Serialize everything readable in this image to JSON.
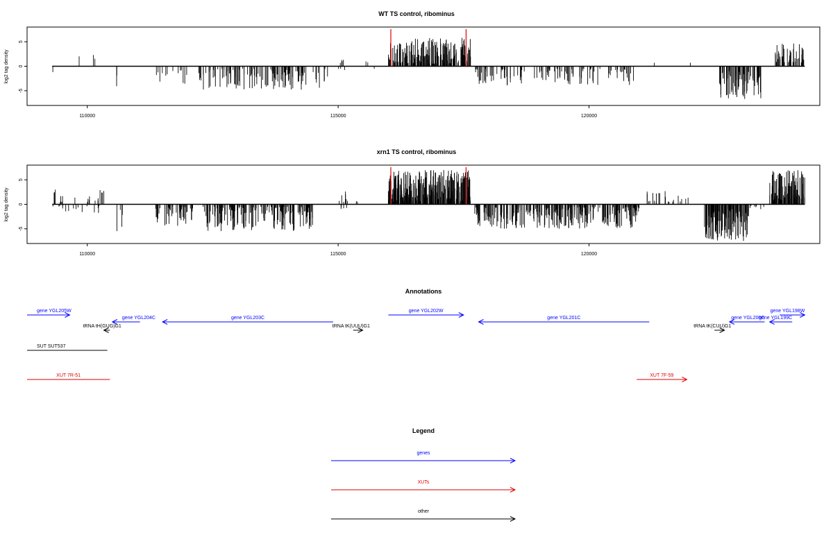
{
  "chart_data": [
    {
      "type": "bar",
      "title": "WT TS control, ribominus",
      "ylabel": "log2 tag density",
      "xlim": [
        108800,
        124600
      ],
      "ylim": [
        -8,
        8
      ],
      "x_ticks": [
        110000,
        115000,
        120000
      ],
      "x_tick_labels": [
        "110000",
        "115000",
        "120000"
      ],
      "y_ticks": [
        -5,
        0,
        5
      ],
      "y_tick_labels": [
        "-5",
        "0",
        "5"
      ],
      "highlight_lines": [
        116050,
        117550
      ],
      "highlight_color": "#dd0000",
      "regions": [
        {
          "start": 109300,
          "end": 109320,
          "sign": -1,
          "min": 1.0,
          "max": 2.0,
          "density": 1
        },
        {
          "start": 109730,
          "end": 110350,
          "sign": 1,
          "min": 0.5,
          "max": 2.3,
          "density": 0.06
        },
        {
          "start": 110500,
          "end": 110620,
          "sign": -1,
          "min": 1.0,
          "max": 5.0,
          "density": 0.25
        },
        {
          "start": 111300,
          "end": 112000,
          "sign": -1,
          "min": 0.5,
          "max": 4.2,
          "density": 0.25
        },
        {
          "start": 112200,
          "end": 114800,
          "sign": -1,
          "min": 0.5,
          "max": 4.8,
          "density": 0.7
        },
        {
          "start": 115000,
          "end": 115150,
          "sign": 1,
          "min": 0.5,
          "max": 1.8,
          "density": 0.4
        },
        {
          "start": 115000,
          "end": 115150,
          "sign": -1,
          "min": 0.5,
          "max": 1.2,
          "density": 0.3
        },
        {
          "start": 115550,
          "end": 115600,
          "sign": 1,
          "min": 0.6,
          "max": 1.0,
          "density": 0.6
        },
        {
          "start": 115700,
          "end": 115720,
          "sign": -1,
          "min": 0.3,
          "max": 0.6,
          "density": 0.5
        },
        {
          "start": 116000,
          "end": 117650,
          "sign": 1,
          "min": 0.5,
          "max": 5.8,
          "density": 1.7
        },
        {
          "start": 117700,
          "end": 120900,
          "sign": -1,
          "min": 0.5,
          "max": 4.0,
          "density": 0.5
        },
        {
          "start": 121300,
          "end": 121330,
          "sign": 1,
          "min": 0.5,
          "max": 0.9,
          "density": 0.5
        },
        {
          "start": 122000,
          "end": 122030,
          "sign": 1,
          "min": 0.5,
          "max": 1.2,
          "density": 0.5
        },
        {
          "start": 122600,
          "end": 123450,
          "sign": -1,
          "min": 1.0,
          "max": 7.0,
          "density": 1.3
        },
        {
          "start": 123700,
          "end": 124300,
          "sign": 1,
          "min": 0.8,
          "max": 4.8,
          "density": 1.1
        }
      ]
    },
    {
      "type": "bar",
      "title": "xrn1 TS control, ribominus",
      "ylabel": "log2 tag density",
      "xlim": [
        108800,
        124600
      ],
      "ylim": [
        -8,
        8
      ],
      "x_ticks": [
        110000,
        115000,
        120000
      ],
      "x_tick_labels": [
        "110000",
        "115000",
        "120000"
      ],
      "y_ticks": [
        -5,
        0,
        5
      ],
      "y_tick_labels": [
        "-5",
        "0",
        "5"
      ],
      "highlight_lines": [
        116050,
        117550
      ],
      "highlight_color": "#dd0000",
      "regions": [
        {
          "start": 109300,
          "end": 110400,
          "sign": 1,
          "min": 0.5,
          "max": 3.2,
          "density": 0.3
        },
        {
          "start": 109300,
          "end": 110400,
          "sign": -1,
          "min": 0.3,
          "max": 1.8,
          "density": 0.2
        },
        {
          "start": 110550,
          "end": 110700,
          "sign": -1,
          "min": 1.0,
          "max": 5.5,
          "density": 0.35
        },
        {
          "start": 111300,
          "end": 112100,
          "sign": -1,
          "min": 0.5,
          "max": 4.6,
          "density": 0.8
        },
        {
          "start": 112300,
          "end": 114500,
          "sign": -1,
          "min": 0.5,
          "max": 5.5,
          "density": 1.1
        },
        {
          "start": 115000,
          "end": 115300,
          "sign": 1,
          "min": 0.5,
          "max": 3.0,
          "density": 0.3
        },
        {
          "start": 115000,
          "end": 115200,
          "sign": -1,
          "min": 0.5,
          "max": 1.2,
          "density": 0.3
        },
        {
          "start": 115350,
          "end": 115500,
          "sign": 1,
          "min": 0.4,
          "max": 1.0,
          "density": 0.2
        },
        {
          "start": 116000,
          "end": 117650,
          "sign": 1,
          "min": 0.5,
          "max": 7.0,
          "density": 2.4
        },
        {
          "start": 117700,
          "end": 121000,
          "sign": -1,
          "min": 0.5,
          "max": 5.0,
          "density": 1.2
        },
        {
          "start": 121000,
          "end": 122000,
          "sign": 1,
          "min": 0.5,
          "max": 3.0,
          "density": 0.3
        },
        {
          "start": 122300,
          "end": 123200,
          "sign": -1,
          "min": 1.0,
          "max": 7.5,
          "density": 2.0
        },
        {
          "start": 123200,
          "end": 123500,
          "sign": -1,
          "min": 0.3,
          "max": 1.2,
          "density": 0.3
        },
        {
          "start": 123600,
          "end": 124300,
          "sign": 1,
          "min": 0.8,
          "max": 7.0,
          "density": 2.0
        }
      ]
    }
  ],
  "annotations": {
    "title": "Annotations",
    "features": [
      {
        "label": "gene YGL205W",
        "start": 108800,
        "end": 109650,
        "dir": "right",
        "row": 0,
        "color": "#0000ff",
        "label_align": "start"
      },
      {
        "label": "gene YGL204C",
        "start": 110500,
        "end": 111050,
        "dir": "left",
        "row": 1,
        "color": "#0000ff",
        "label_align": "start"
      },
      {
        "label": "gene YGL203C",
        "start": 111500,
        "end": 114900,
        "dir": "left",
        "row": 1,
        "color": "#0000ff",
        "label_align": "middle"
      },
      {
        "label": "tRNA tH(GUG)G1",
        "start": 110330,
        "end": 110450,
        "dir": "left",
        "row": 2,
        "color": "#000000",
        "label_align": "start"
      },
      {
        "label": "tRNA tK(UUU)G1",
        "start": 115300,
        "end": 115490,
        "dir": "right",
        "row": 2,
        "color": "#000000",
        "label_align": "start"
      },
      {
        "label": "gene YGL202W",
        "start": 116000,
        "end": 117500,
        "dir": "right",
        "row": 0,
        "color": "#0000ff",
        "label_align": "middle"
      },
      {
        "label": "gene YGL201C",
        "start": 117800,
        "end": 121200,
        "dir": "left",
        "row": 1,
        "color": "#0000ff",
        "label_align": "middle"
      },
      {
        "label": "tRNA tK(CUU)G1",
        "start": 122500,
        "end": 122700,
        "dir": "right",
        "row": 2,
        "color": "#000000",
        "label_align": "start"
      },
      {
        "label": "gene YGL200C",
        "start": 122800,
        "end": 123500,
        "dir": "left",
        "row": 1,
        "color": "#0000ff",
        "label_align": "end"
      },
      {
        "label": "gene YGL199C",
        "start": 123600,
        "end": 124050,
        "dir": "left",
        "row": 1,
        "color": "#0000ff",
        "label_align": "end"
      },
      {
        "label": "gene YGL198W",
        "start": 123800,
        "end": 124300,
        "dir": "right",
        "row": 0,
        "color": "#0000ff",
        "label_align": "end"
      },
      {
        "label": "SUT SUT537",
        "start": 108800,
        "end": 110400,
        "dir": "none",
        "row": 3,
        "color": "#000000",
        "label_align": "start"
      },
      {
        "label": "XUT 7R-51",
        "start": 108800,
        "end": 110450,
        "dir": "none",
        "row": 4,
        "color": "#dd0000",
        "label_align": "middle"
      },
      {
        "label": "XUT 7F-59",
        "start": 120950,
        "end": 121950,
        "dir": "right",
        "row": 4,
        "color": "#dd0000",
        "label_align": "middle"
      }
    ]
  },
  "legend": {
    "title": "Legend",
    "items": [
      {
        "label": "genes",
        "color": "#0000ff"
      },
      {
        "label": "XUTs",
        "color": "#dd0000"
      },
      {
        "label": "other",
        "color": "#000000"
      }
    ]
  }
}
